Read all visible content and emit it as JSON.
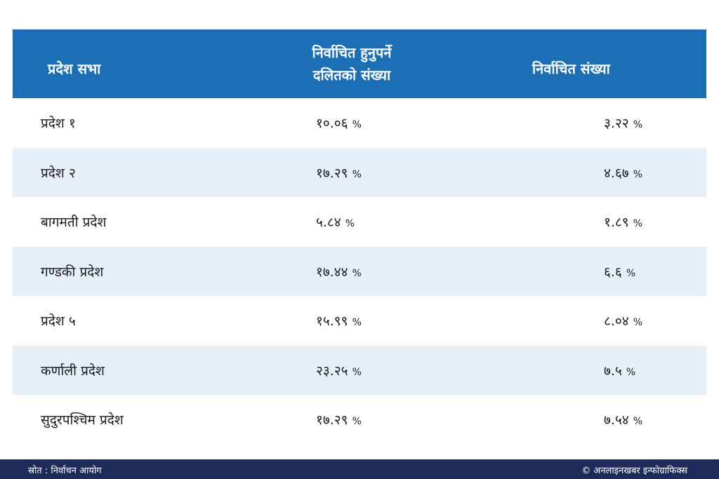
{
  "header": {
    "col1": "प्रदेश सभा",
    "col2_line1": "निर्वाचित हुनुपर्ने",
    "col2_line2": "दलितको संख्या",
    "col3": "निर्वाचित संख्या"
  },
  "rows": [
    {
      "province": "प्रदेश १",
      "required": "१०.०६",
      "elected": "३.२२"
    },
    {
      "province": "प्रदेश २",
      "required": "१७.२९",
      "elected": "४.६७"
    },
    {
      "province": "बागमती प्रदेश",
      "required": "५.८४",
      "elected": "१.८९"
    },
    {
      "province": "गण्डकी प्रदेश",
      "required": "१७.४४",
      "elected": "६.६"
    },
    {
      "province": "प्रदेश ५",
      "required": "१५.९९",
      "elected": "८.०४"
    },
    {
      "province": "कर्णाली प्रदेश",
      "required": "२३.२५",
      "elected": "७.५"
    },
    {
      "province": "सुदुरपश्चिम प्रदेश",
      "required": "१७.२९",
      "elected": "७.५४"
    }
  ],
  "percent_sign": "%",
  "footer": {
    "source": "स्रोत : निर्वाचन आयोग",
    "credit": "© अनलाइनखबर इन्फोग्राफिक्स"
  },
  "colors": {
    "header_bg": "#1c6fb5",
    "alt_row_bg": "#e6eff8",
    "footer_bg": "#1e2a5a"
  }
}
